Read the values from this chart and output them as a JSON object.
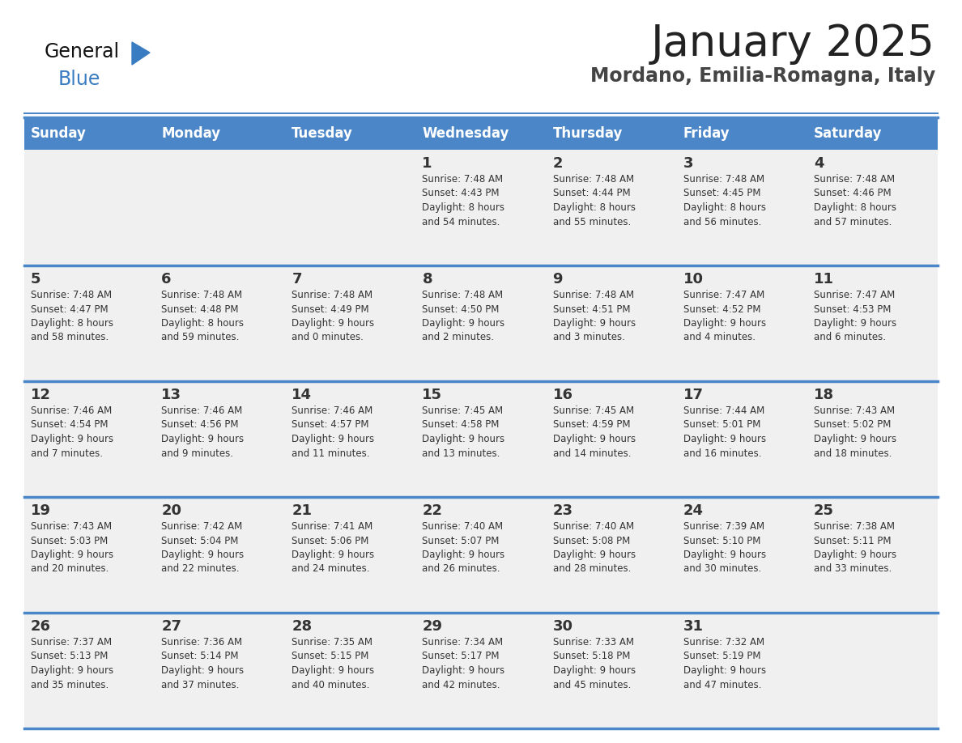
{
  "title": "January 2025",
  "subtitle": "Mordano, Emilia-Romagna, Italy",
  "days_of_week": [
    "Sunday",
    "Monday",
    "Tuesday",
    "Wednesday",
    "Thursday",
    "Friday",
    "Saturday"
  ],
  "header_bg": "#4a86c8",
  "header_text": "#ffffff",
  "cell_bg": "#f0f0f0",
  "cell_text": "#333333",
  "border_color": "#4a86c8",
  "title_color": "#222222",
  "subtitle_color": "#444444",
  "logo_general_color": "#111111",
  "logo_blue_color": "#3a7cc1",
  "calendar_data": [
    [
      {
        "day": "",
        "info": ""
      },
      {
        "day": "",
        "info": ""
      },
      {
        "day": "",
        "info": ""
      },
      {
        "day": "1",
        "info": "Sunrise: 7:48 AM\nSunset: 4:43 PM\nDaylight: 8 hours\nand 54 minutes."
      },
      {
        "day": "2",
        "info": "Sunrise: 7:48 AM\nSunset: 4:44 PM\nDaylight: 8 hours\nand 55 minutes."
      },
      {
        "day": "3",
        "info": "Sunrise: 7:48 AM\nSunset: 4:45 PM\nDaylight: 8 hours\nand 56 minutes."
      },
      {
        "day": "4",
        "info": "Sunrise: 7:48 AM\nSunset: 4:46 PM\nDaylight: 8 hours\nand 57 minutes."
      }
    ],
    [
      {
        "day": "5",
        "info": "Sunrise: 7:48 AM\nSunset: 4:47 PM\nDaylight: 8 hours\nand 58 minutes."
      },
      {
        "day": "6",
        "info": "Sunrise: 7:48 AM\nSunset: 4:48 PM\nDaylight: 8 hours\nand 59 minutes."
      },
      {
        "day": "7",
        "info": "Sunrise: 7:48 AM\nSunset: 4:49 PM\nDaylight: 9 hours\nand 0 minutes."
      },
      {
        "day": "8",
        "info": "Sunrise: 7:48 AM\nSunset: 4:50 PM\nDaylight: 9 hours\nand 2 minutes."
      },
      {
        "day": "9",
        "info": "Sunrise: 7:48 AM\nSunset: 4:51 PM\nDaylight: 9 hours\nand 3 minutes."
      },
      {
        "day": "10",
        "info": "Sunrise: 7:47 AM\nSunset: 4:52 PM\nDaylight: 9 hours\nand 4 minutes."
      },
      {
        "day": "11",
        "info": "Sunrise: 7:47 AM\nSunset: 4:53 PM\nDaylight: 9 hours\nand 6 minutes."
      }
    ],
    [
      {
        "day": "12",
        "info": "Sunrise: 7:46 AM\nSunset: 4:54 PM\nDaylight: 9 hours\nand 7 minutes."
      },
      {
        "day": "13",
        "info": "Sunrise: 7:46 AM\nSunset: 4:56 PM\nDaylight: 9 hours\nand 9 minutes."
      },
      {
        "day": "14",
        "info": "Sunrise: 7:46 AM\nSunset: 4:57 PM\nDaylight: 9 hours\nand 11 minutes."
      },
      {
        "day": "15",
        "info": "Sunrise: 7:45 AM\nSunset: 4:58 PM\nDaylight: 9 hours\nand 13 minutes."
      },
      {
        "day": "16",
        "info": "Sunrise: 7:45 AM\nSunset: 4:59 PM\nDaylight: 9 hours\nand 14 minutes."
      },
      {
        "day": "17",
        "info": "Sunrise: 7:44 AM\nSunset: 5:01 PM\nDaylight: 9 hours\nand 16 minutes."
      },
      {
        "day": "18",
        "info": "Sunrise: 7:43 AM\nSunset: 5:02 PM\nDaylight: 9 hours\nand 18 minutes."
      }
    ],
    [
      {
        "day": "19",
        "info": "Sunrise: 7:43 AM\nSunset: 5:03 PM\nDaylight: 9 hours\nand 20 minutes."
      },
      {
        "day": "20",
        "info": "Sunrise: 7:42 AM\nSunset: 5:04 PM\nDaylight: 9 hours\nand 22 minutes."
      },
      {
        "day": "21",
        "info": "Sunrise: 7:41 AM\nSunset: 5:06 PM\nDaylight: 9 hours\nand 24 minutes."
      },
      {
        "day": "22",
        "info": "Sunrise: 7:40 AM\nSunset: 5:07 PM\nDaylight: 9 hours\nand 26 minutes."
      },
      {
        "day": "23",
        "info": "Sunrise: 7:40 AM\nSunset: 5:08 PM\nDaylight: 9 hours\nand 28 minutes."
      },
      {
        "day": "24",
        "info": "Sunrise: 7:39 AM\nSunset: 5:10 PM\nDaylight: 9 hours\nand 30 minutes."
      },
      {
        "day": "25",
        "info": "Sunrise: 7:38 AM\nSunset: 5:11 PM\nDaylight: 9 hours\nand 33 minutes."
      }
    ],
    [
      {
        "day": "26",
        "info": "Sunrise: 7:37 AM\nSunset: 5:13 PM\nDaylight: 9 hours\nand 35 minutes."
      },
      {
        "day": "27",
        "info": "Sunrise: 7:36 AM\nSunset: 5:14 PM\nDaylight: 9 hours\nand 37 minutes."
      },
      {
        "day": "28",
        "info": "Sunrise: 7:35 AM\nSunset: 5:15 PM\nDaylight: 9 hours\nand 40 minutes."
      },
      {
        "day": "29",
        "info": "Sunrise: 7:34 AM\nSunset: 5:17 PM\nDaylight: 9 hours\nand 42 minutes."
      },
      {
        "day": "30",
        "info": "Sunrise: 7:33 AM\nSunset: 5:18 PM\nDaylight: 9 hours\nand 45 minutes."
      },
      {
        "day": "31",
        "info": "Sunrise: 7:32 AM\nSunset: 5:19 PM\nDaylight: 9 hours\nand 47 minutes."
      },
      {
        "day": "",
        "info": ""
      }
    ]
  ]
}
